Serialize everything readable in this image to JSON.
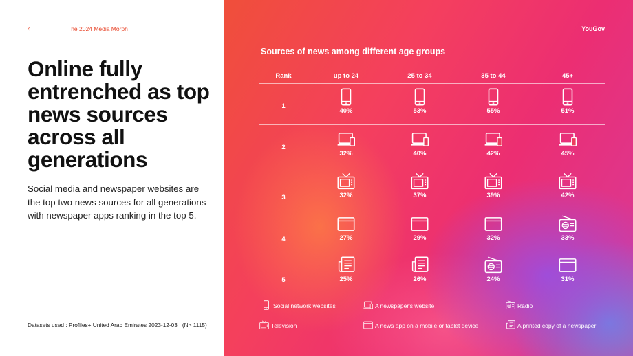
{
  "page": {
    "page_number": "4",
    "report_title": "The 2024 Media Morph",
    "brand": "YouGov",
    "headline": "Online fully entrenched as top news sources across all generations",
    "lead": "Social media and newspaper websites are the top two news sources for all generations with newspaper apps ranking in the top 5.",
    "footnote": "Datasets used : Profiles+ United Arab Emirates 2023-12-03 ; (N> 1115)"
  },
  "colors": {
    "accent": "#e8472c",
    "text_on_gradient": "#ffffff"
  },
  "chart_data": {
    "type": "table",
    "title": "Sources of news among different age groups",
    "row_header": "Rank",
    "columns": [
      "up to 24",
      "25 to 34",
      "35 to 44",
      "45+"
    ],
    "ranks": [
      "1",
      "2",
      "3",
      "4",
      "5"
    ],
    "rows": [
      [
        {
          "source": "Social network websites",
          "icon": "smartphone-icon",
          "value": 40,
          "label": "40%"
        },
        {
          "source": "Social network websites",
          "icon": "smartphone-icon",
          "value": 53,
          "label": "53%"
        },
        {
          "source": "Social network websites",
          "icon": "smartphone-icon",
          "value": 55,
          "label": "55%"
        },
        {
          "source": "Social network websites",
          "icon": "smartphone-icon",
          "value": 51,
          "label": "51%"
        }
      ],
      [
        {
          "source": "A newspaper's website",
          "icon": "laptop-phone-icon",
          "value": 32,
          "label": "32%"
        },
        {
          "source": "A newspaper's website",
          "icon": "laptop-phone-icon",
          "value": 40,
          "label": "40%"
        },
        {
          "source": "A newspaper's website",
          "icon": "laptop-phone-icon",
          "value": 42,
          "label": "42%"
        },
        {
          "source": "A newspaper's website",
          "icon": "laptop-phone-icon",
          "value": 45,
          "label": "45%"
        }
      ],
      [
        {
          "source": "Television",
          "icon": "television-icon",
          "value": 32,
          "label": "32%"
        },
        {
          "source": "Television",
          "icon": "television-icon",
          "value": 37,
          "label": "37%"
        },
        {
          "source": "Television",
          "icon": "television-icon",
          "value": 39,
          "label": "39%"
        },
        {
          "source": "Television",
          "icon": "television-icon",
          "value": 42,
          "label": "42%"
        }
      ],
      [
        {
          "source": "A news app on a mobile or tablet device",
          "icon": "app-window-icon",
          "value": 27,
          "label": "27%"
        },
        {
          "source": "A news app on a mobile or tablet device",
          "icon": "app-window-icon",
          "value": 29,
          "label": "29%"
        },
        {
          "source": "A news app on a mobile or tablet device",
          "icon": "app-window-icon",
          "value": 32,
          "label": "32%"
        },
        {
          "source": "Radio",
          "icon": "radio-icon",
          "value": 33,
          "label": "33%"
        }
      ],
      [
        {
          "source": "A printed copy of a newspaper",
          "icon": "newspaper-icon",
          "value": 25,
          "label": "25%"
        },
        {
          "source": "A printed copy of a newspaper",
          "icon": "newspaper-icon",
          "value": 26,
          "label": "26%"
        },
        {
          "source": "Radio",
          "icon": "radio-icon",
          "value": 24,
          "label": "24%"
        },
        {
          "source": "A news app on a mobile or tablet device",
          "icon": "app-window-icon",
          "value": 31,
          "label": "31%"
        }
      ]
    ],
    "legend": [
      {
        "label": "Social network websites",
        "icon": "smartphone-icon"
      },
      {
        "label": "A newspaper's website",
        "icon": "laptop-phone-icon"
      },
      {
        "label": "Radio",
        "icon": "radio-icon"
      },
      {
        "label": "Television",
        "icon": "television-icon"
      },
      {
        "label": "A news app on a mobile or tablet device",
        "icon": "app-window-icon"
      },
      {
        "label": "A printed copy of a newspaper",
        "icon": "newspaper-icon"
      }
    ]
  }
}
